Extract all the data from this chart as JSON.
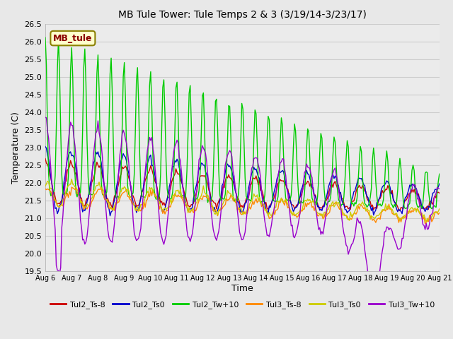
{
  "title": "MB Tule Tower: Tule Temps 2 & 3 (3/19/14-3/23/17)",
  "xlabel": "Time",
  "ylabel": "Temperature (C)",
  "ylim": [
    19.5,
    26.5
  ],
  "annotation": "MB_tule",
  "series_names": [
    "Tul2_Ts-8",
    "Tul2_Ts0",
    "Tul2_Tw+10",
    "Tul3_Ts-8",
    "Tul3_Ts0",
    "Tul3_Tw+10"
  ],
  "colors": [
    "#cc0000",
    "#0000cc",
    "#00cc00",
    "#ff8800",
    "#cccc00",
    "#9900cc"
  ],
  "lw": 1.0,
  "xtick_labels": [
    "Aug 6",
    "Aug 7",
    "Aug 8",
    "Aug 9",
    "Aug 10",
    "Aug 11",
    "Aug 12",
    "Aug 13",
    "Aug 14",
    "Aug 15",
    "Aug 16",
    "Aug 17",
    "Aug 18",
    "Aug 19",
    "Aug 20",
    "Aug 21"
  ],
  "yticks": [
    19.5,
    20.0,
    20.5,
    21.0,
    21.5,
    22.0,
    22.5,
    23.0,
    23.5,
    24.0,
    24.5,
    25.0,
    25.5,
    26.0,
    26.5
  ],
  "grid_color": "#cccccc",
  "fig_bg": "#e8e8e8",
  "ax_bg": "#ebebeb",
  "legend_ncol": 6
}
